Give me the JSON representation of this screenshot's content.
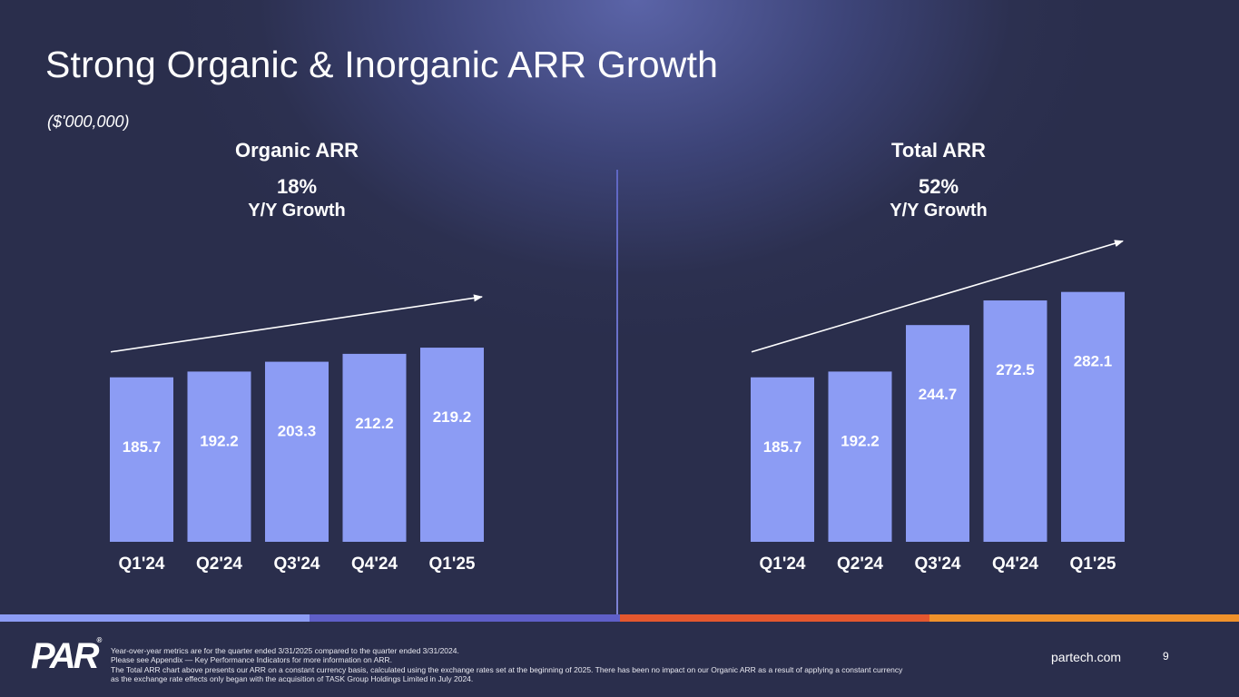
{
  "title": "Strong Organic & Inorganic ARR Growth",
  "units": "($'000,000)",
  "colors": {
    "bar": "#8c9cf4",
    "label_on_bar": "#ffffff",
    "strip": [
      "#8c9cf4",
      "#5f5fc8",
      "#e4572e",
      "#f0922b"
    ]
  },
  "chart_data": [
    {
      "type": "bar",
      "title": "Organic ARR",
      "growth": "18%",
      "growth_label": "Y/Y Growth",
      "categories": [
        "Q1'24",
        "Q2'24",
        "Q3'24",
        "Q4'24",
        "Q1'25"
      ],
      "values": [
        185.7,
        192.2,
        203.3,
        212.2,
        219.2
      ],
      "value_labels": [
        "185.7",
        "192.2",
        "203.3",
        "212.2",
        "219.2"
      ],
      "xlabel": "",
      "ylabel": "",
      "ylim": [
        0,
        300
      ],
      "grid": false,
      "annotation": "upward trend arrow"
    },
    {
      "type": "bar",
      "title": "Total ARR",
      "growth": "52%",
      "growth_label": "Y/Y Growth",
      "categories": [
        "Q1'24",
        "Q2'24",
        "Q3'24",
        "Q4'24",
        "Q1'25"
      ],
      "values": [
        185.7,
        192.2,
        244.7,
        272.5,
        282.1
      ],
      "value_labels": [
        "185.7",
        "192.2",
        "244.7",
        "272.5",
        "282.1"
      ],
      "xlabel": "",
      "ylabel": "",
      "ylim": [
        0,
        300
      ],
      "grid": false,
      "annotation": "upward trend arrow"
    }
  ],
  "footer": {
    "logo": "PAR",
    "logo_mark": "®",
    "notes": [
      "Year-over-year metrics are for the quarter ended 3/31/2025 compared to the quarter ended 3/31/2024.",
      "Please see Appendix — Key Performance Indicators for more information on ARR.",
      "The Total ARR chart above presents our ARR on a constant currency basis, calculated using the exchange rates set at the beginning of 2025. There has been no impact on our Organic ARR as a result of applying a constant currency",
      "as the exchange rate effects only began with the acquisition of TASK Group Holdings Limited in July 2024."
    ],
    "website": "partech.com",
    "page_number": "9"
  }
}
